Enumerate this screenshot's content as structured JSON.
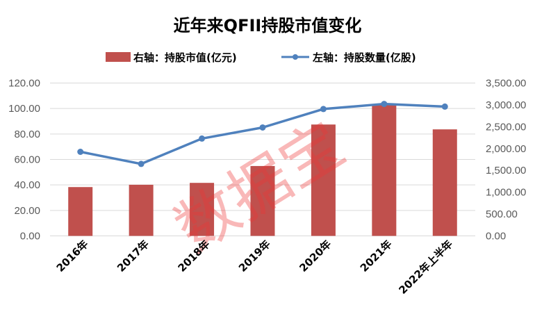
{
  "chart_data": {
    "type": "bar+line",
    "title": "近年来QFII持股市值变化",
    "categories": [
      "2016年",
      "2017年",
      "2018年",
      "2019年",
      "2020年",
      "2021年",
      "2022年上半年"
    ],
    "series": [
      {
        "name": "右轴：持股市值(亿元)",
        "type": "bar",
        "axis": "right",
        "color": "#C0504D",
        "values": [
          1118,
          1171,
          1214,
          1600,
          2550,
          3000,
          2439
        ]
      },
      {
        "name": "左轴：持股数量(亿股)",
        "type": "line",
        "axis": "left",
        "color": "#4F81BD",
        "values": [
          66.0,
          56.5,
          76.4,
          85.1,
          99.6,
          103.6,
          101.5
        ]
      }
    ],
    "left_axis": {
      "ylim": [
        0,
        120
      ],
      "ticks": [
        "0.00",
        "20.00",
        "40.00",
        "60.00",
        "80.00",
        "100.00",
        "120.00"
      ]
    },
    "right_axis": {
      "ylim": [
        0,
        3500
      ],
      "ticks": [
        "0.00",
        "500.00",
        "1,000.00",
        "1,500.00",
        "2,000.00",
        "2,500.00",
        "3,000.00",
        "3,500.00"
      ]
    },
    "grid": true,
    "legend": "top",
    "watermark": "数据宝"
  }
}
